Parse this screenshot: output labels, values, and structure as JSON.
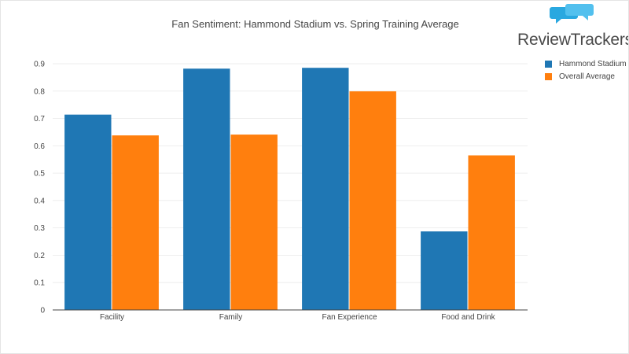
{
  "chart_data": {
    "type": "bar",
    "title": "Fan Sentiment: Hammond Stadium vs. Spring Training Average",
    "xlabel": "",
    "ylabel": "",
    "categories": [
      "Facility",
      "Family",
      "Fan Experience",
      "Food and Drink"
    ],
    "series": [
      {
        "name": "Hammond Stadium",
        "color": "#1f77b4",
        "values": [
          0.714,
          0.882,
          0.885,
          0.287
        ]
      },
      {
        "name": "Overall Average",
        "color": "#ff7f0e",
        "values": [
          0.638,
          0.641,
          0.799,
          0.565
        ]
      }
    ],
    "ylim": [
      0,
      0.9
    ],
    "yticks": [
      "0",
      "0.1",
      "0.2",
      "0.3",
      "0.4",
      "0.5",
      "0.6",
      "0.7",
      "0.8",
      "0.9"
    ],
    "grid": true,
    "legend": "top-right"
  },
  "brand": {
    "logo_text": "ReviewTrackers",
    "logo_icon": "chat-bubbles-icon",
    "color": "#29a8e0"
  }
}
